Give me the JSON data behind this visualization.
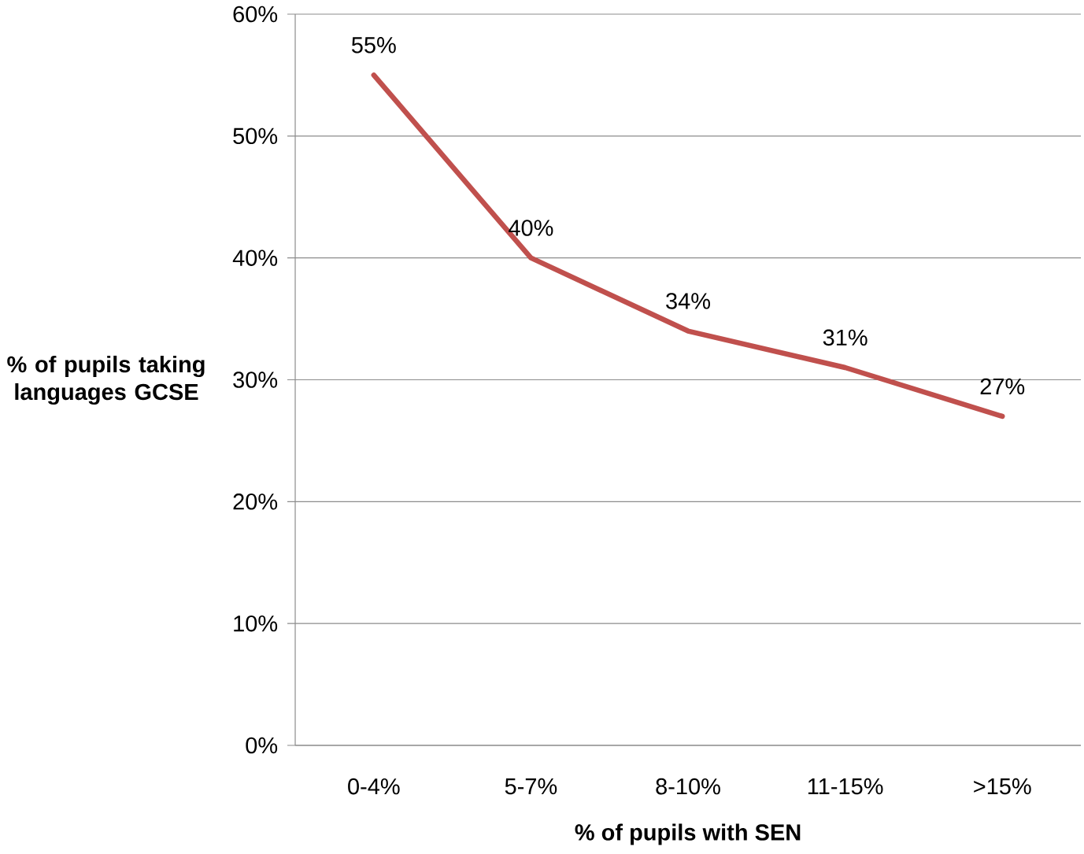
{
  "chart_data": {
    "type": "line",
    "xlabel": "% of pupils with SEN",
    "ylabel": "% of pupils taking languages GCSE",
    "categories": [
      "0-4%",
      "5-7%",
      "8-10%",
      "11-15%",
      ">15%"
    ],
    "series": [
      {
        "color": "#c0504d",
        "values": [
          55,
          40,
          34,
          31,
          27
        ],
        "value_labels": [
          "55%",
          "40%",
          "34%",
          "31%",
          "27%"
        ]
      }
    ],
    "ylim": [
      0,
      60
    ],
    "yticks": [
      {
        "value": 0,
        "label": "0%"
      },
      {
        "value": 10,
        "label": "10%"
      },
      {
        "value": 20,
        "label": "20%"
      },
      {
        "value": 30,
        "label": "30%"
      },
      {
        "value": 40,
        "label": "40%"
      },
      {
        "value": 50,
        "label": "50%"
      },
      {
        "value": 60,
        "label": "60%"
      }
    ],
    "grid": "y",
    "marker": "none"
  }
}
